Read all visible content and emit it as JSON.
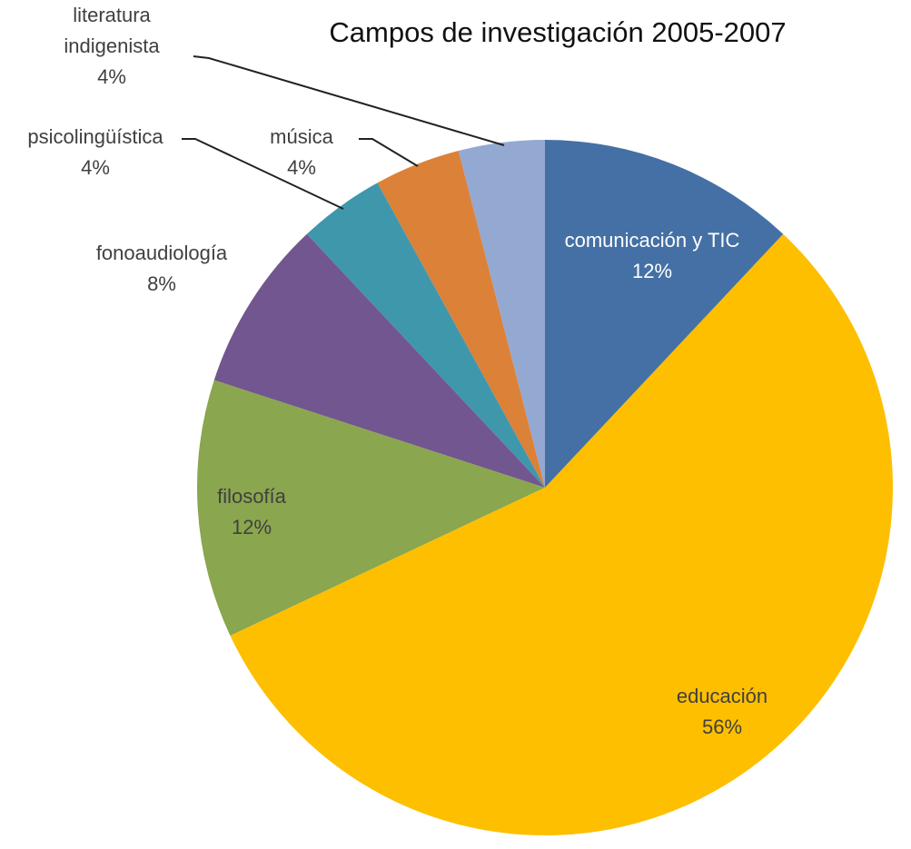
{
  "chart_data": {
    "type": "pie",
    "title": "Campos de investigación 2005-2007",
    "categories": [
      "comunicación y TIC",
      "educación",
      "filosofía",
      "fonoaudiología",
      "psicolingüística",
      "música",
      "literatura indigenista"
    ],
    "values": [
      12,
      56,
      12,
      8,
      4,
      4,
      4
    ],
    "value_labels": [
      "12%",
      "56%",
      "12%",
      "8%",
      "4%",
      "4%",
      "4%"
    ],
    "colors": [
      "#4470a5",
      "#fdbf00",
      "#8aa64e",
      "#72568f",
      "#3f97ac",
      "#dc8138",
      "#93a9d1"
    ]
  }
}
